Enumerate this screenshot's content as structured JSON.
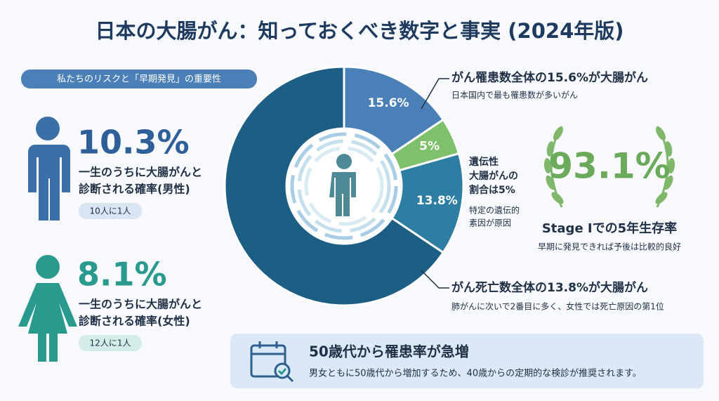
{
  "title": "日本の大腸がん：知っておくべき数字と事実 (2024年版)",
  "risk": {
    "heading": "私たちのリスクと「早期発見」の重要性",
    "male": {
      "rate": "10.3%",
      "lines": [
        "一生のうちに大腸がんと",
        "診断される確率(男性)"
      ],
      "ratio": "10人に1人"
    },
    "female": {
      "rate": "8.1%",
      "lines": [
        "一生のうちに大腸がんと",
        "診断される確率(女性)"
      ],
      "ratio": "12人に1人"
    }
  },
  "chart_data": {
    "type": "donut",
    "values": [
      15.6,
      5,
      13.8,
      65.6
    ],
    "value_labels": [
      "15.6%",
      "5%",
      "13.8%",
      null
    ],
    "colors": [
      "#4a7fb8",
      "#7fc06c",
      "#2e7da3",
      "#1d5e84"
    ]
  },
  "callouts": [
    {
      "heading": "がん罹患数全体の15.6%が大腸がん",
      "note": "日本国内で最も罹患数が多いがん"
    },
    {
      "lines": [
        "遺伝性",
        "大腸がんの",
        "割合は5%"
      ],
      "note_lines": [
        "特定の遺伝的",
        "素因が原因"
      ]
    },
    {
      "heading": "がん死亡数全体の13.8%が大腸がん",
      "note": "肺がんに次いで2番目に多く、女性では死亡原因の第1位"
    }
  ],
  "survival": {
    "rate": "93.1%",
    "label": "Stage Iでの5年生存率",
    "note": "早期に発見できれば予後は比較的良好"
  },
  "banner": {
    "heading": "50歳代から罹患率が急増",
    "text": "男女ともに50歳代から増加するため、40歳からの定期的な検診が推奨されます。"
  }
}
